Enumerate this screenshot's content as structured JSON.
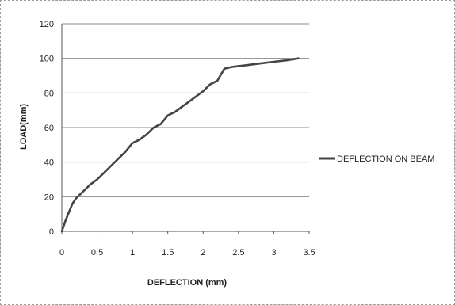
{
  "chart_data": {
    "type": "line",
    "xlabel": "DEFLECTION (mm)",
    "ylabel": "LOAD(mm)",
    "xlim": [
      0,
      3.5
    ],
    "ylim": [
      0,
      120
    ],
    "x_ticks": [
      "0",
      "0.5",
      "1",
      "1.5",
      "2",
      "2.5",
      "3",
      "3.5"
    ],
    "y_ticks": [
      "0",
      "20",
      "40",
      "60",
      "80",
      "100",
      "120"
    ],
    "grid": "horizontal",
    "legend": "right",
    "series": [
      {
        "name": "DEFLECTION ON BEAM",
        "color": "#444444",
        "x": [
          0,
          0.05,
          0.1,
          0.15,
          0.2,
          0.3,
          0.4,
          0.5,
          0.6,
          0.7,
          0.8,
          0.9,
          1.0,
          1.1,
          1.2,
          1.3,
          1.4,
          1.5,
          1.6,
          1.7,
          1.8,
          1.9,
          2.0,
          2.1,
          2.2,
          2.3,
          2.4,
          2.6,
          2.8,
          3.0,
          3.2,
          3.35
        ],
        "y": [
          0,
          6,
          11,
          16,
          19,
          23,
          27,
          30,
          34,
          38,
          42,
          46,
          51,
          53,
          56,
          60,
          62,
          67,
          69,
          72,
          75,
          78,
          81,
          85,
          87,
          94,
          95,
          96,
          97,
          98,
          99,
          100
        ]
      }
    ]
  }
}
